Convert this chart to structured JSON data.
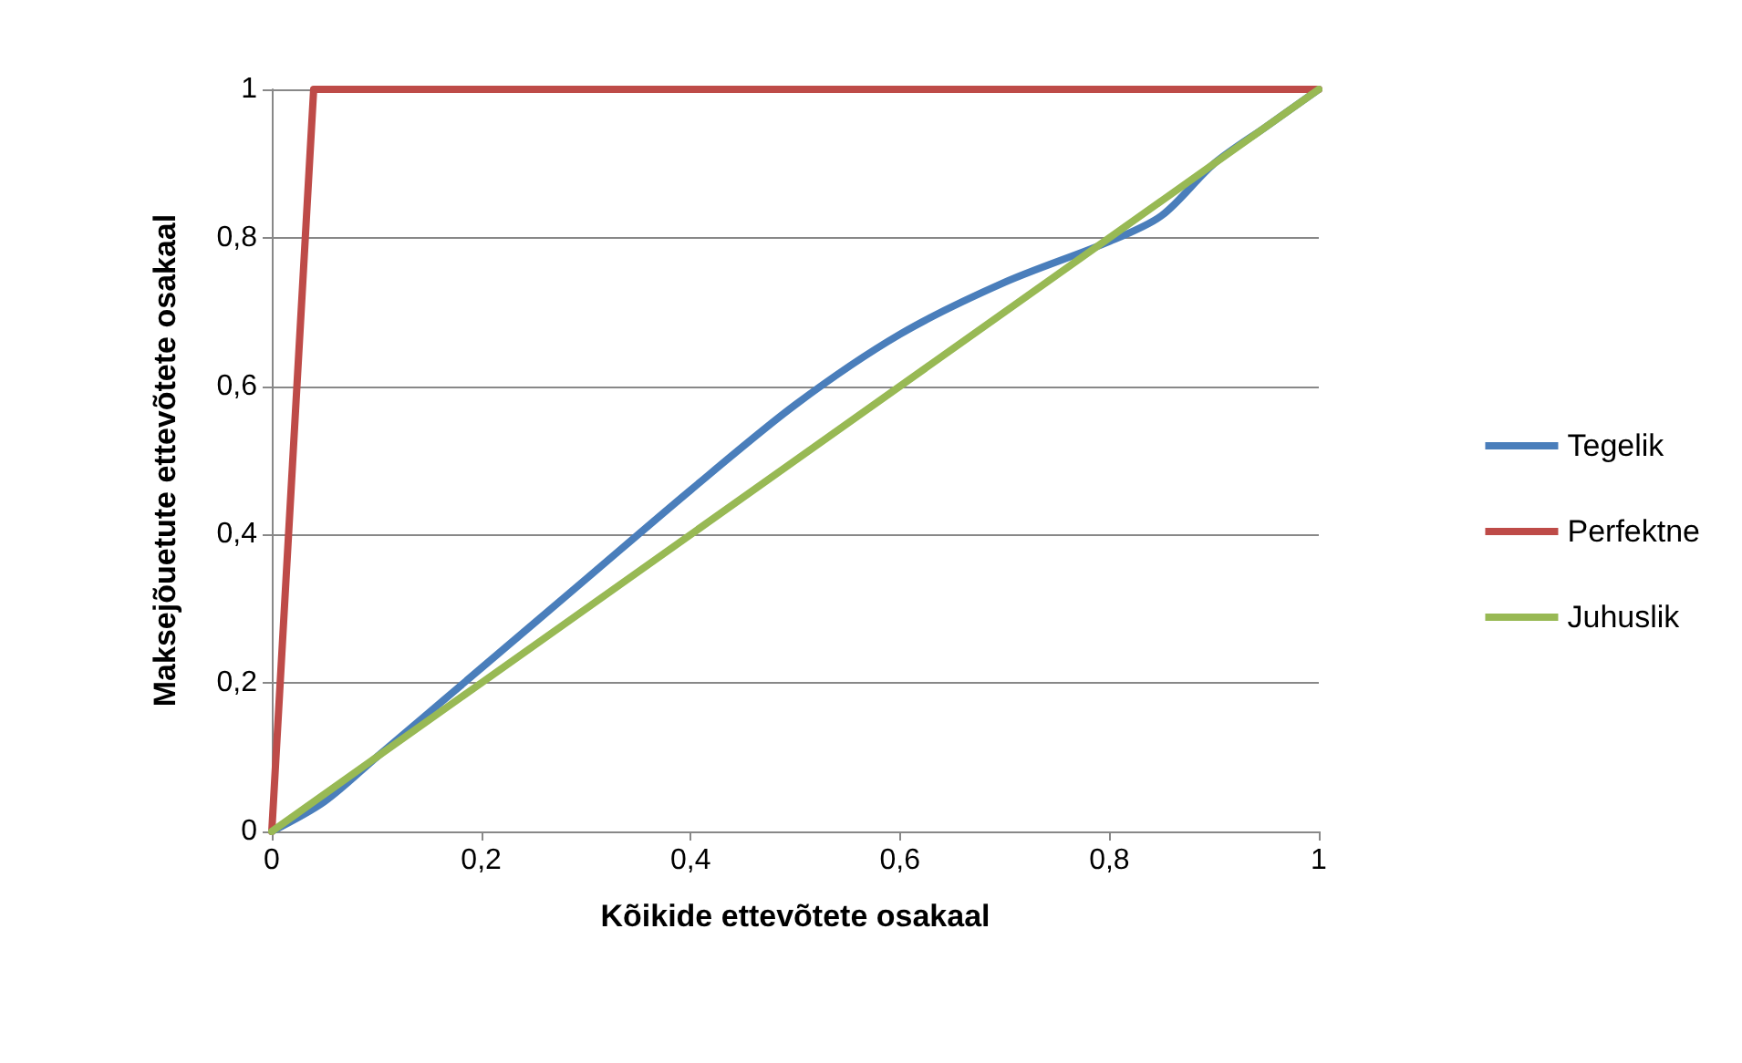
{
  "chart_data": {
    "type": "line",
    "xlabel": "Kõikide ettevõtete osakaal",
    "ylabel": "Maksejõuetute ettevõtete osakaal",
    "series": [
      {
        "name": "Tegelik",
        "color": "#4a7ebb",
        "x": [
          0,
          0.05,
          0.1,
          0.2,
          0.3,
          0.4,
          0.5,
          0.6,
          0.7,
          0.8,
          0.85,
          0.9,
          0.95,
          1
        ],
        "values": [
          0,
          0.04,
          0.1,
          0.22,
          0.34,
          0.46,
          0.575,
          0.67,
          0.74,
          0.795,
          0.83,
          0.9,
          0.95,
          1
        ]
      },
      {
        "name": "Perfektne",
        "color": "#be4b48",
        "x": [
          0,
          0.04,
          1
        ],
        "values": [
          0,
          1,
          1
        ]
      },
      {
        "name": "Juhuslik",
        "color": "#98b954",
        "x": [
          0,
          1
        ],
        "values": [
          0,
          1
        ]
      }
    ],
    "xlim": [
      0,
      1
    ],
    "xticks": [
      0,
      {
        "value": 0.2,
        "label": "0,2"
      },
      {
        "value": 0.4,
        "label": "0,4"
      },
      {
        "value": 0.6,
        "label": "0,6"
      },
      {
        "value": 0.8,
        "label": "0,8"
      },
      1
    ],
    "ylim": [
      0,
      1
    ],
    "yticks": [
      0,
      {
        "value": 0.2,
        "label": "0,2"
      },
      {
        "value": 0.4,
        "label": "0,4"
      },
      {
        "value": 0.6,
        "label": "0,6"
      },
      {
        "value": 0.8,
        "label": "0,8"
      },
      1
    ],
    "grid": "y",
    "legend": "right",
    "marker": "none",
    "line_style": "solid"
  }
}
